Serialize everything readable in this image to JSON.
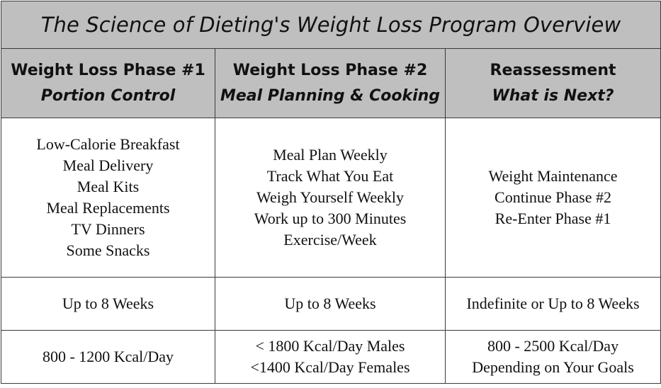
{
  "title": "The Science of Dieting's Weight Loss Program Overview",
  "columns": [
    {
      "heading": "Weight Loss Phase #1",
      "subheading": "Portion Control",
      "items": [
        "Low-Calorie Breakfast",
        "Meal Delivery",
        "Meal Kits",
        "Meal Replacements",
        "TV Dinners",
        "Some Snacks"
      ],
      "duration": "Up to 8 Weeks",
      "calories": [
        "800 - 1200 Kcal/Day"
      ]
    },
    {
      "heading": "Weight Loss Phase #2",
      "subheading": "Meal Planning & Cooking",
      "items": [
        "Meal Plan Weekly",
        "Track What You Eat",
        "Weigh Yourself Weekly",
        "Work up to 300 Minutes",
        "Exercise/Week"
      ],
      "duration": "Up to 8 Weeks",
      "calories": [
        "< 1800 Kcal/Day Males",
        "<1400 Kcal/Day Females"
      ]
    },
    {
      "heading": "Reassessment",
      "subheading": "What is Next?",
      "items": [
        "Weight Maintenance",
        "Continue Phase #2",
        "Re-Enter Phase #1"
      ],
      "duration": "Indefinite or Up to 8 Weeks",
      "calories": [
        "800 - 2500 Kcal/Day",
        "Depending on Your Goals"
      ]
    }
  ]
}
